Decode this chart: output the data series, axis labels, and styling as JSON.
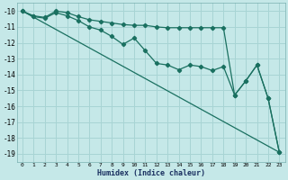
{
  "xlabel": "Humidex (Indice chaleur)",
  "background_color": "#c5e8e8",
  "grid_color": "#a8d4d4",
  "line_color": "#1a7060",
  "xlim": [
    -0.5,
    23.5
  ],
  "ylim": [
    -19.5,
    -9.5
  ],
  "xticks": [
    0,
    1,
    2,
    3,
    4,
    5,
    6,
    7,
    8,
    9,
    10,
    11,
    12,
    13,
    14,
    15,
    16,
    17,
    18,
    19,
    20,
    21,
    22,
    23
  ],
  "yticks": [
    -10,
    -11,
    -12,
    -13,
    -14,
    -15,
    -16,
    -17,
    -18,
    -19
  ],
  "line1_x": [
    0,
    1,
    2,
    3,
    4,
    5,
    6,
    7,
    8,
    9,
    10,
    11,
    12,
    13,
    14,
    15,
    16,
    17,
    18,
    19,
    20,
    21,
    22,
    23
  ],
  "line1_y": [
    -10.0,
    -10.3,
    -10.4,
    -10.0,
    -10.1,
    -10.35,
    -10.55,
    -10.65,
    -10.75,
    -10.85,
    -10.9,
    -10.9,
    -11.0,
    -11.05,
    -11.05,
    -11.05,
    -11.05,
    -11.05,
    -11.05,
    -15.3,
    -14.4,
    -13.4,
    -15.5,
    -18.9
  ],
  "line2_x": [
    0,
    1,
    2,
    3,
    4,
    5,
    6,
    7,
    8,
    9,
    10,
    11,
    12,
    13,
    14,
    15,
    16,
    17,
    18,
    19,
    20,
    21,
    22,
    23
  ],
  "line2_y": [
    -10.0,
    -10.35,
    -10.45,
    -10.1,
    -10.3,
    -10.6,
    -11.0,
    -11.2,
    -11.6,
    -12.1,
    -11.7,
    -12.5,
    -13.3,
    -13.4,
    -13.7,
    -13.4,
    -13.5,
    -13.75,
    -13.5,
    -15.3,
    -14.4,
    -13.4,
    -15.5,
    -18.9
  ],
  "line3_x": [
    0,
    23
  ],
  "line3_y": [
    -10.0,
    -18.9
  ]
}
